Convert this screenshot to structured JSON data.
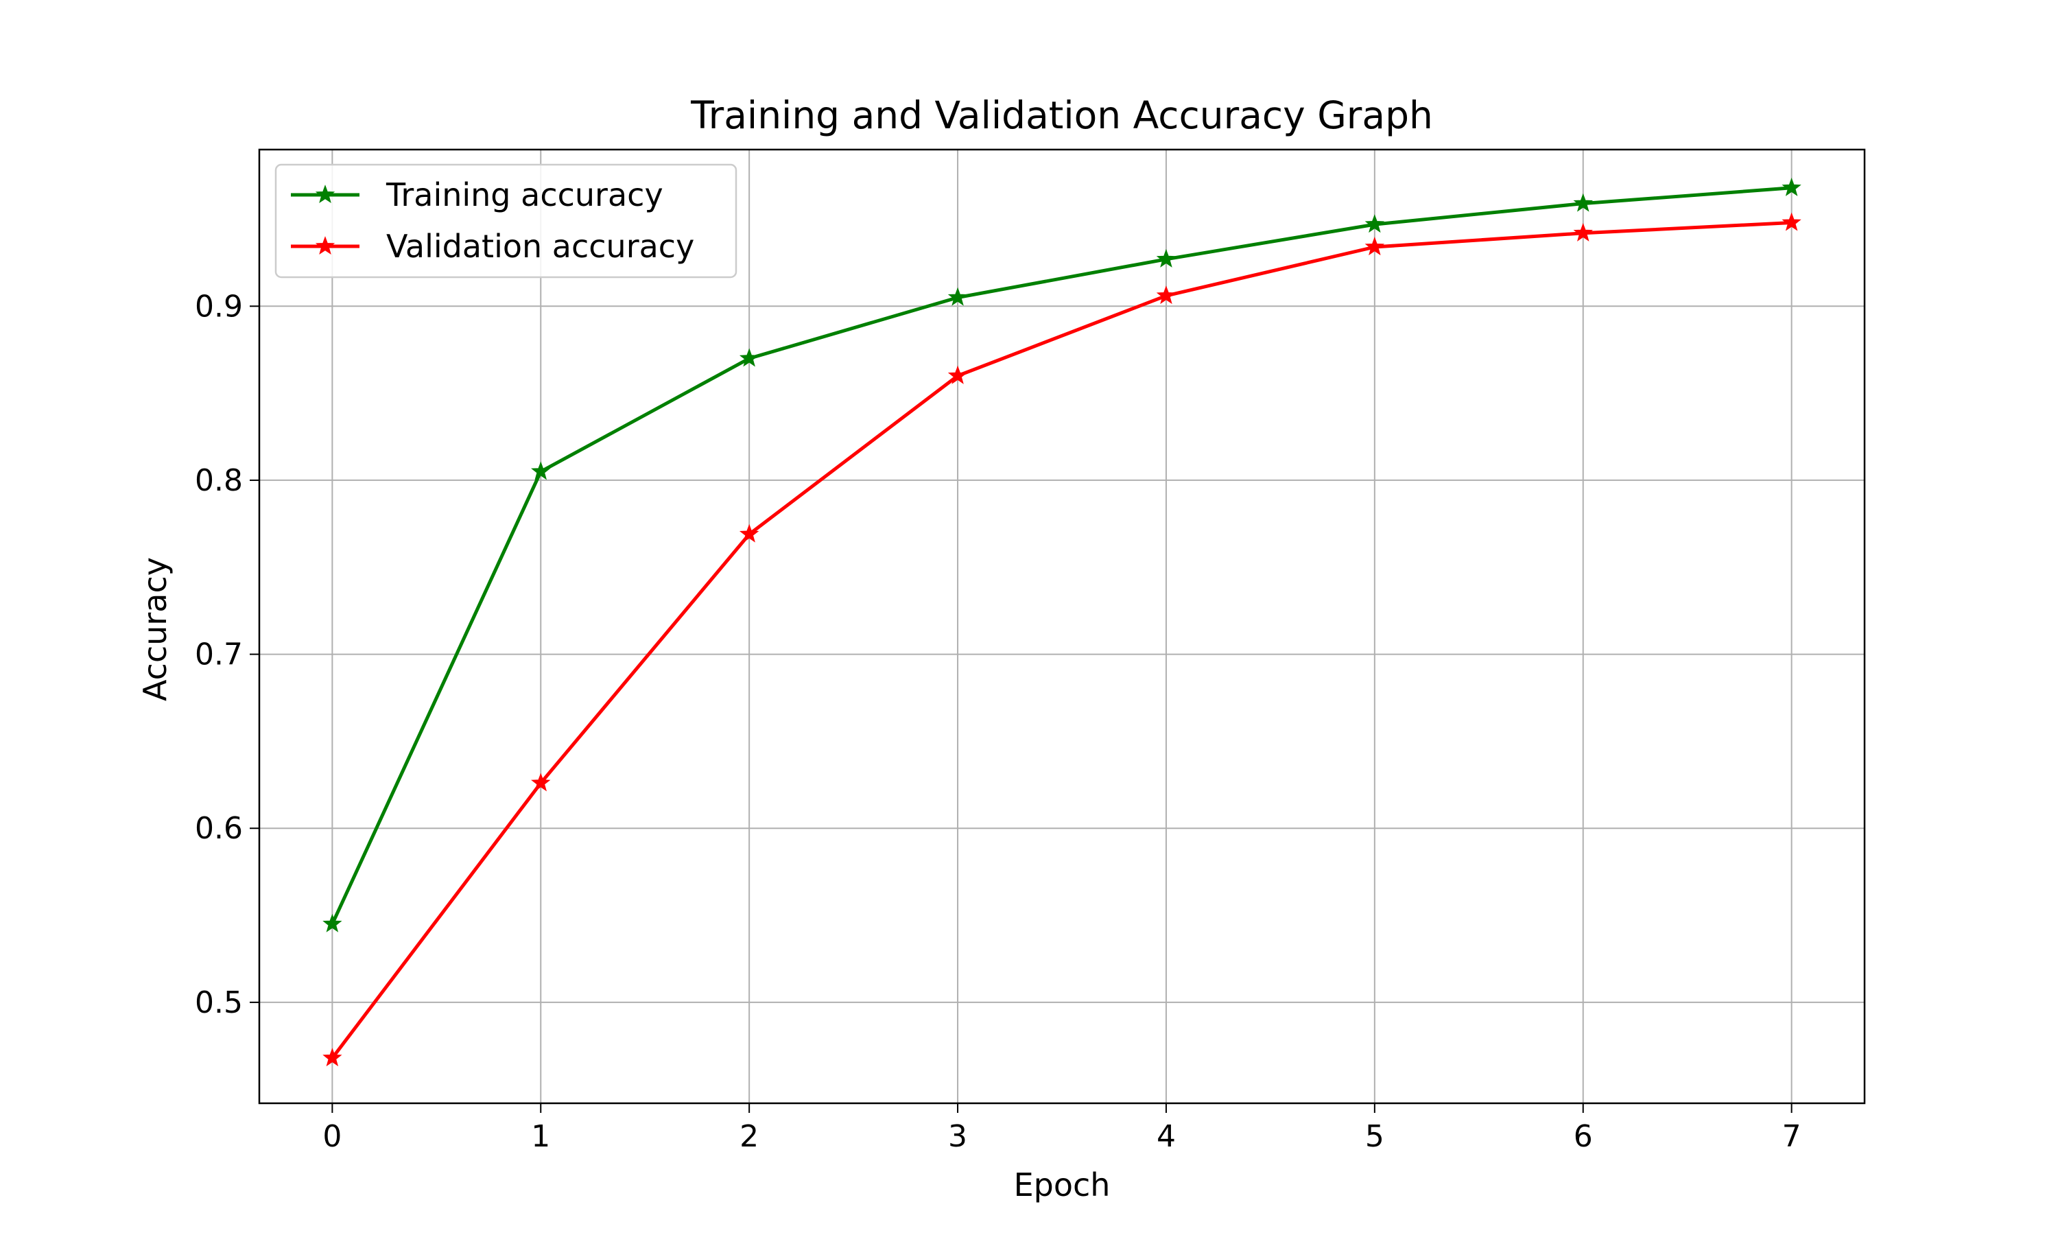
{
  "chart_data": {
    "type": "line",
    "title": "Training and Validation Accuracy Graph",
    "xlabel": "Epoch",
    "ylabel": "Accuracy",
    "x": [
      0,
      1,
      2,
      3,
      4,
      5,
      6,
      7
    ],
    "xticks": [
      "0",
      "1",
      "2",
      "3",
      "4",
      "5",
      "6",
      "7"
    ],
    "yticks": [
      "0.5",
      "0.6",
      "0.7",
      "0.8",
      "0.9"
    ],
    "xlim": [
      -0.35,
      7.35
    ],
    "ylim": [
      0.442,
      0.99
    ],
    "grid": true,
    "legend_position": "top-left",
    "series": [
      {
        "name": "Training accuracy",
        "color": "#008000",
        "marker": "star",
        "values": [
          0.545,
          0.805,
          0.87,
          0.905,
          0.927,
          0.947,
          0.959,
          0.968
        ]
      },
      {
        "name": "Validation accuracy",
        "color": "#ff0000",
        "marker": "star",
        "values": [
          0.468,
          0.626,
          0.769,
          0.86,
          0.906,
          0.934,
          0.942,
          0.948
        ]
      }
    ]
  }
}
